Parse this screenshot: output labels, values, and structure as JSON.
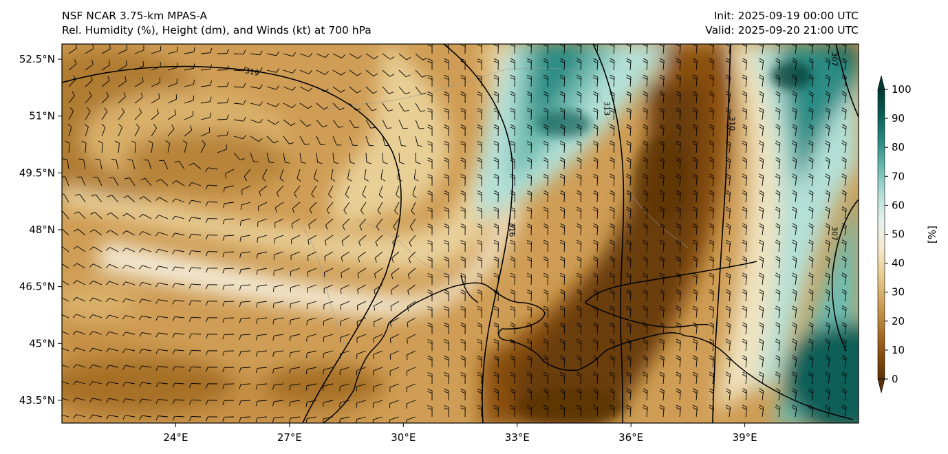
{
  "header": {
    "model": "NSF NCAR 3.75-km MPAS-A",
    "field": "Rel. Humidity (%), Height (dm), and Winds (kt) at 700 hPa",
    "init": "Init: 2025-09-19 00:00 UTC",
    "valid": "Valid: 2025-09-20 21:00 UTC"
  },
  "map": {
    "lon_range": [
      21,
      42
    ],
    "lat_range": [
      42.9,
      52.9
    ],
    "lon_ticks": [
      {
        "value": 24,
        "label": "24°E"
      },
      {
        "value": 27,
        "label": "27°E"
      },
      {
        "value": 30,
        "label": "30°E"
      },
      {
        "value": 33,
        "label": "33°E"
      },
      {
        "value": 36,
        "label": "36°E"
      },
      {
        "value": 39,
        "label": "39°E"
      }
    ],
    "lat_ticks": [
      {
        "value": 52.5,
        "label": "52.5°N"
      },
      {
        "value": 51,
        "label": "51°N"
      },
      {
        "value": 49.5,
        "label": "49.5°N"
      },
      {
        "value": 48,
        "label": "48°N"
      },
      {
        "value": 46.5,
        "label": "46.5°N"
      },
      {
        "value": 45,
        "label": "45°N"
      },
      {
        "value": 43.5,
        "label": "43.5°N"
      }
    ],
    "height_contours": [
      {
        "label": "319",
        "label_lon": 26.0,
        "label_lat": 52.1
      },
      {
        "label": "316",
        "label_lon": 32.8,
        "label_lat": 48.0
      },
      {
        "label": "313",
        "label_lon": 35.3,
        "label_lat": 51.2
      },
      {
        "label": "310",
        "label_lon": 38.6,
        "label_lat": 50.8
      },
      {
        "label": "307",
        "label_lon": 41.3,
        "label_lat": 52.5
      },
      {
        "label": "307",
        "label_lon": 41.3,
        "label_lat": 47.9
      }
    ]
  },
  "colorbar": {
    "unit": "[%]",
    "ticks": [
      0,
      10,
      20,
      30,
      40,
      50,
      60,
      70,
      80,
      90,
      100
    ],
    "colors": [
      "#5a3206",
      "#8a500f",
      "#b07b32",
      "#d0a55d",
      "#e8cf96",
      "#f5ead0",
      "#e7f1ee",
      "#b4e0d7",
      "#6fbcb0",
      "#2c8c85",
      "#0a5f58",
      "#01392f"
    ]
  }
}
